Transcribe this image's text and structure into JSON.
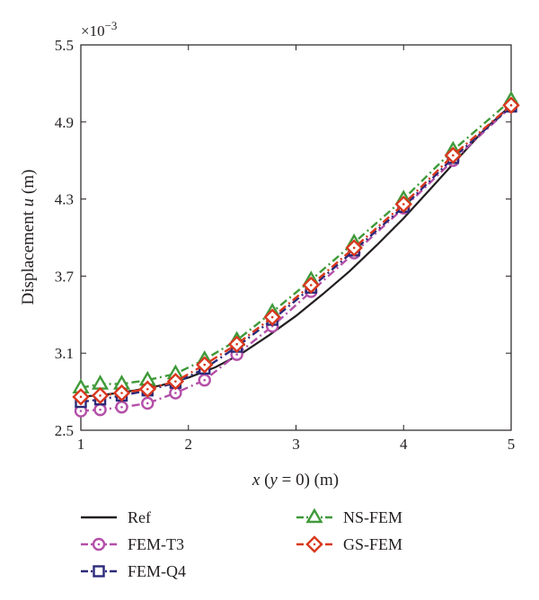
{
  "chart_data": {
    "type": "line",
    "title": "",
    "exponent_label": "×10",
    "exponent_power": "−3",
    "xlabel_parts": [
      "x",
      " (",
      "y",
      " = 0) (m)"
    ],
    "ylabel_parts": [
      "Displacement ",
      "u",
      " (m)"
    ],
    "xlim": [
      1,
      5
    ],
    "ylim": [
      2.5,
      5.5
    ],
    "x_ticks": [
      1,
      2,
      3,
      4,
      5
    ],
    "x_tick_labels": [
      "1",
      "2",
      "3",
      "4",
      "5"
    ],
    "y_ticks": [
      2.5,
      3.1,
      3.7,
      4.3,
      4.9,
      5.5
    ],
    "y_tick_labels": [
      "2.5",
      "3.1",
      "3.7",
      "4.3",
      "4.9",
      "5.5"
    ],
    "grid": false,
    "legend_position": "bottom",
    "series": [
      {
        "name": "Ref",
        "color": "#231f20",
        "line": "solid",
        "marker": "none",
        "x": [
          1,
          1.25,
          1.5,
          1.75,
          2,
          2.25,
          2.5,
          2.75,
          3,
          3.25,
          3.5,
          3.75,
          4,
          4.25,
          4.5,
          4.75,
          5
        ],
        "y": [
          2.76,
          2.78,
          2.81,
          2.85,
          2.91,
          2.99,
          3.1,
          3.24,
          3.39,
          3.56,
          3.74,
          3.94,
          4.15,
          4.38,
          4.61,
          4.84,
          5.03
        ]
      },
      {
        "name": "FEM-T3",
        "color": "#b44fa8",
        "line": "dashdot",
        "marker": "circle",
        "x": [
          1,
          1.18,
          1.38,
          1.62,
          1.88,
          2.15,
          2.45,
          2.78,
          3.14,
          3.54,
          4.0,
          4.46,
          5
        ],
        "y": [
          2.65,
          2.66,
          2.68,
          2.71,
          2.79,
          2.89,
          3.09,
          3.31,
          3.58,
          3.88,
          4.23,
          4.6,
          5.02
        ]
      },
      {
        "name": "FEM-Q4",
        "color": "#2b2a7a",
        "line": "dashdot",
        "marker": "square",
        "x": [
          1,
          1.18,
          1.38,
          1.62,
          1.88,
          2.15,
          2.45,
          2.78,
          3.14,
          3.54,
          4.0,
          4.46,
          5
        ],
        "y": [
          2.72,
          2.74,
          2.77,
          2.81,
          2.87,
          2.98,
          3.15,
          3.36,
          3.61,
          3.9,
          4.24,
          4.62,
          5.02
        ]
      },
      {
        "name": "NS-FEM",
        "color": "#3f9a3a",
        "line": "dashdot",
        "marker": "triangle",
        "x": [
          1,
          1.18,
          1.38,
          1.62,
          1.88,
          2.15,
          2.45,
          2.78,
          3.14,
          3.54,
          4.0,
          4.46,
          5
        ],
        "y": [
          2.83,
          2.86,
          2.86,
          2.89,
          2.94,
          3.05,
          3.2,
          3.42,
          3.67,
          3.96,
          4.3,
          4.68,
          5.07
        ]
      },
      {
        "name": "GS-FEM",
        "color": "#d9381e",
        "line": "dashdot",
        "marker": "diamond",
        "x": [
          1,
          1.18,
          1.38,
          1.62,
          1.88,
          2.15,
          2.45,
          2.78,
          3.14,
          3.54,
          4.0,
          4.46,
          5
        ],
        "y": [
          2.76,
          2.77,
          2.79,
          2.82,
          2.88,
          3.01,
          3.17,
          3.38,
          3.63,
          3.92,
          4.26,
          4.64,
          5.03
        ]
      }
    ]
  }
}
